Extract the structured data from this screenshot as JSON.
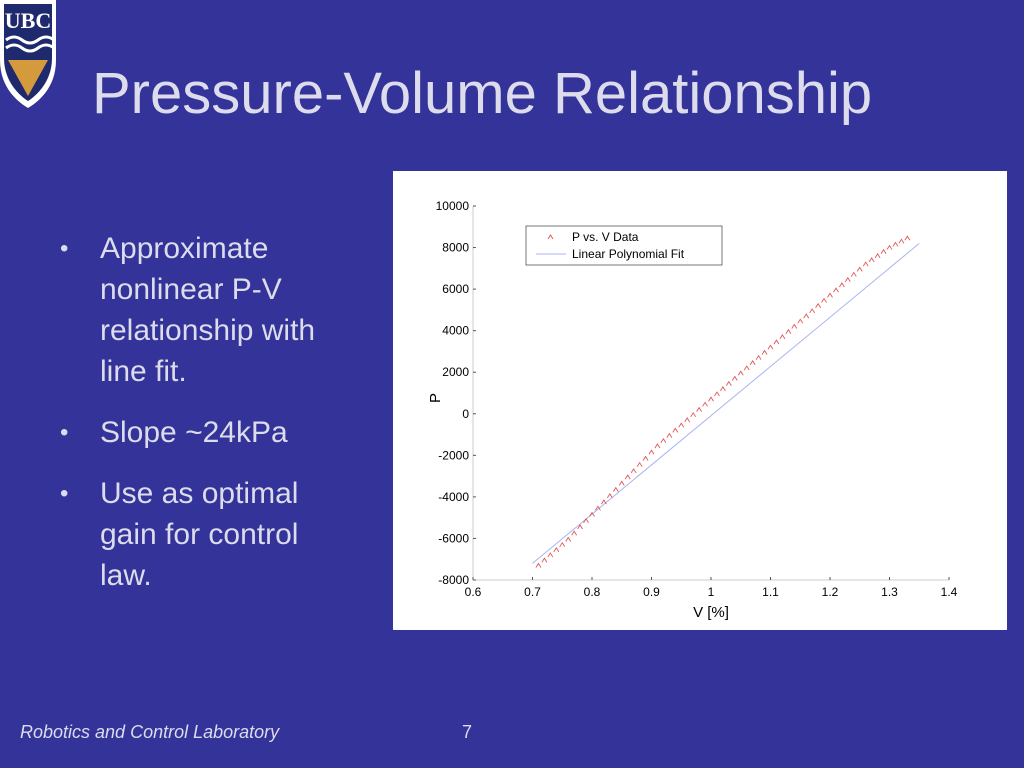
{
  "slide": {
    "logo_text": "UBC",
    "title": "Pressure-Volume Relationship",
    "bullets": [
      "Approximate nonlinear P-V relationship with line fit.",
      "Slope ~24kPa",
      "Use as optimal gain for  control law."
    ],
    "footer": "Robotics and Control Laboratory",
    "page_number": "7"
  },
  "colors": {
    "background": "#333399",
    "text": "#dcdcec",
    "data_marker": "#e05555",
    "fit_line": "#aab4f0",
    "logo_blue": "#1f2a6e",
    "logo_gold": "#d49a3c"
  },
  "chart_data": {
    "type": "scatter",
    "xlabel": "V [%]",
    "ylabel": "P",
    "xlim": [
      0.6,
      1.4
    ],
    "ylim": [
      -8000,
      10000
    ],
    "xticks": [
      "0.6",
      "0.7",
      "0.8",
      "0.9",
      "1",
      "1.1",
      "1.2",
      "1.3",
      "1.4"
    ],
    "yticks": [
      "10000",
      "8000",
      "6000",
      "4000",
      "2000",
      "0",
      "-2000",
      "-4000",
      "-6000",
      "-8000"
    ],
    "legend_position": "top-left",
    "grid": false,
    "series": [
      {
        "name": "P vs. V Data",
        "kind": "markers",
        "x": [
          0.71,
          0.72,
          0.73,
          0.74,
          0.75,
          0.76,
          0.77,
          0.78,
          0.79,
          0.8,
          0.81,
          0.82,
          0.83,
          0.84,
          0.85,
          0.86,
          0.87,
          0.88,
          0.89,
          0.9,
          0.91,
          0.92,
          0.93,
          0.94,
          0.95,
          0.96,
          0.97,
          0.98,
          0.99,
          1.0,
          1.01,
          1.02,
          1.03,
          1.04,
          1.05,
          1.06,
          1.07,
          1.08,
          1.09,
          1.1,
          1.11,
          1.12,
          1.13,
          1.14,
          1.15,
          1.16,
          1.17,
          1.18,
          1.19,
          1.2,
          1.21,
          1.22,
          1.23,
          1.24,
          1.25,
          1.26,
          1.27,
          1.28,
          1.29,
          1.3,
          1.31,
          1.32,
          1.33
        ],
        "y": [
          -7300,
          -7050,
          -6800,
          -6550,
          -6300,
          -6050,
          -5750,
          -5450,
          -5150,
          -4850,
          -4550,
          -4250,
          -3950,
          -3650,
          -3350,
          -3050,
          -2750,
          -2450,
          -2150,
          -1850,
          -1550,
          -1300,
          -1050,
          -800,
          -550,
          -300,
          -50,
          200,
          450,
          700,
          950,
          1200,
          1450,
          1700,
          1950,
          2200,
          2450,
          2700,
          2950,
          3200,
          3450,
          3700,
          3950,
          4200,
          4450,
          4700,
          4950,
          5200,
          5450,
          5700,
          5950,
          6200,
          6450,
          6700,
          6950,
          7200,
          7400,
          7600,
          7800,
          8000,
          8150,
          8300,
          8450
        ]
      },
      {
        "name": "Linear Polynomial Fit",
        "kind": "line",
        "x": [
          0.7,
          1.35
        ],
        "y": [
          -7200,
          8200
        ]
      }
    ]
  }
}
